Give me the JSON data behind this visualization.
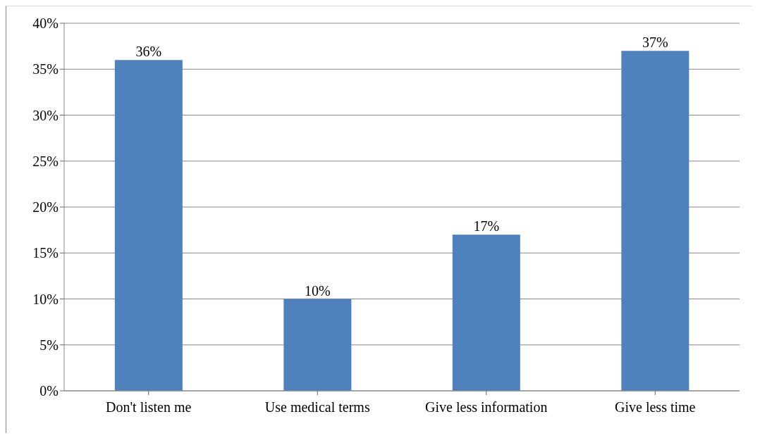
{
  "chart_data": {
    "type": "bar",
    "categories": [
      "Don't listen me",
      "Use medical terms",
      "Give less information",
      "Give less time"
    ],
    "values": [
      36,
      10,
      17,
      37
    ],
    "value_labels": [
      "36%",
      "10%",
      "17%",
      "37%"
    ],
    "color": "#4f81bd",
    "ylim": [
      0,
      40
    ],
    "yticks": [
      {
        "value": 0,
        "label": "0%"
      },
      {
        "value": 5,
        "label": "5%"
      },
      {
        "value": 10,
        "label": "10%"
      },
      {
        "value": 15,
        "label": "15%"
      },
      {
        "value": 20,
        "label": "20%"
      },
      {
        "value": 25,
        "label": "25%"
      },
      {
        "value": 30,
        "label": "30%"
      },
      {
        "value": 35,
        "label": "35%"
      },
      {
        "value": 40,
        "label": "40%"
      }
    ],
    "grid": "y"
  }
}
